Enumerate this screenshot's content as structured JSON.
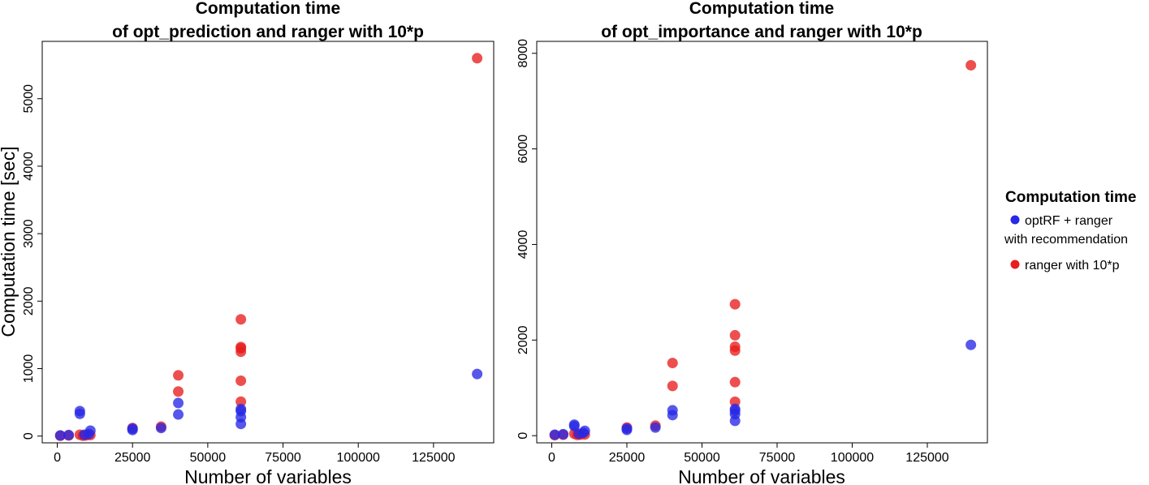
{
  "legend": {
    "title": "Computation time",
    "entries": [
      {
        "series": 0,
        "lines": [
          "optRF + ranger",
          "with recommendation"
        ]
      },
      {
        "series": 1,
        "lines": [
          "ranger with 10*p"
        ]
      }
    ],
    "position": "right"
  },
  "colors": {
    "optRF_ranger": "#2828e6",
    "ranger_10p": "#e81e1e"
  },
  "chart_data": [
    {
      "type": "scatter",
      "title": [
        "Computation time",
        "of opt_prediction and ranger with 10*p"
      ],
      "xlabel": "Number of variables",
      "ylabel": "Computation time [sec]",
      "xlim": [
        -5000,
        145000
      ],
      "ylim": [
        -100,
        5850
      ],
      "xticks": [
        0,
        25000,
        50000,
        75000,
        100000,
        125000
      ],
      "yticks": [
        0,
        1000,
        2000,
        3000,
        4000,
        5000
      ],
      "ytick_rotation": -90,
      "grid": false,
      "series": [
        {
          "name": "optRF + ranger with recommendation",
          "color": "#2828e6",
          "points": [
            [
              1000,
              10
            ],
            [
              3800,
              15
            ],
            [
              7500,
              330
            ],
            [
              7500,
              370
            ],
            [
              9000,
              20
            ],
            [
              10500,
              30
            ],
            [
              11000,
              80
            ],
            [
              25000,
              90
            ],
            [
              25000,
              110
            ],
            [
              34500,
              120
            ],
            [
              40200,
              320
            ],
            [
              40200,
              490
            ],
            [
              61000,
              180
            ],
            [
              61000,
              280
            ],
            [
              61000,
              370
            ],
            [
              61000,
              400
            ],
            [
              139500,
              920
            ]
          ]
        },
        {
          "name": "ranger with 10*p",
          "color": "#e81e1e",
          "points": [
            [
              1000,
              5
            ],
            [
              3800,
              10
            ],
            [
              7500,
              20
            ],
            [
              8500,
              5
            ],
            [
              9500,
              10
            ],
            [
              11000,
              15
            ],
            [
              25000,
              120
            ],
            [
              34500,
              140
            ],
            [
              40200,
              660
            ],
            [
              40200,
              900
            ],
            [
              61000,
              510
            ],
            [
              61000,
              820
            ],
            [
              61000,
              1250
            ],
            [
              61000,
              1300
            ],
            [
              61000,
              1320
            ],
            [
              61000,
              1730
            ],
            [
              139500,
              5600
            ]
          ]
        }
      ]
    },
    {
      "type": "scatter",
      "title": [
        "Computation time",
        "of opt_importance and ranger with 10*p"
      ],
      "xlabel": "Number of variables",
      "ylabel": "",
      "xlim": [
        -5000,
        145000
      ],
      "ylim": [
        -150,
        8250
      ],
      "xticks": [
        0,
        25000,
        50000,
        75000,
        100000,
        125000
      ],
      "yticks": [
        0,
        2000,
        4000,
        6000,
        8000
      ],
      "ytick_rotation": -90,
      "grid": false,
      "series": [
        {
          "name": "optRF + ranger with recommendation",
          "color": "#2828e6",
          "points": [
            [
              1000,
              20
            ],
            [
              3800,
              30
            ],
            [
              7500,
              200
            ],
            [
              7500,
              230
            ],
            [
              9000,
              40
            ],
            [
              10500,
              60
            ],
            [
              11000,
              100
            ],
            [
              25000,
              120
            ],
            [
              25000,
              150
            ],
            [
              34500,
              170
            ],
            [
              40200,
              430
            ],
            [
              40200,
              530
            ],
            [
              61000,
              310
            ],
            [
              61000,
              450
            ],
            [
              61000,
              520
            ],
            [
              61000,
              560
            ],
            [
              139500,
              1900
            ]
          ]
        },
        {
          "name": "ranger with 10*p",
          "color": "#e81e1e",
          "points": [
            [
              1000,
              10
            ],
            [
              3800,
              20
            ],
            [
              7500,
              40
            ],
            [
              8500,
              15
            ],
            [
              9500,
              20
            ],
            [
              11000,
              25
            ],
            [
              25000,
              170
            ],
            [
              34500,
              210
            ],
            [
              40200,
              1040
            ],
            [
              40200,
              1520
            ],
            [
              61000,
              710
            ],
            [
              61000,
              1120
            ],
            [
              61000,
              1780
            ],
            [
              61000,
              1860
            ],
            [
              61000,
              2100
            ],
            [
              61000,
              2750
            ],
            [
              139500,
              7750
            ]
          ]
        }
      ]
    }
  ]
}
